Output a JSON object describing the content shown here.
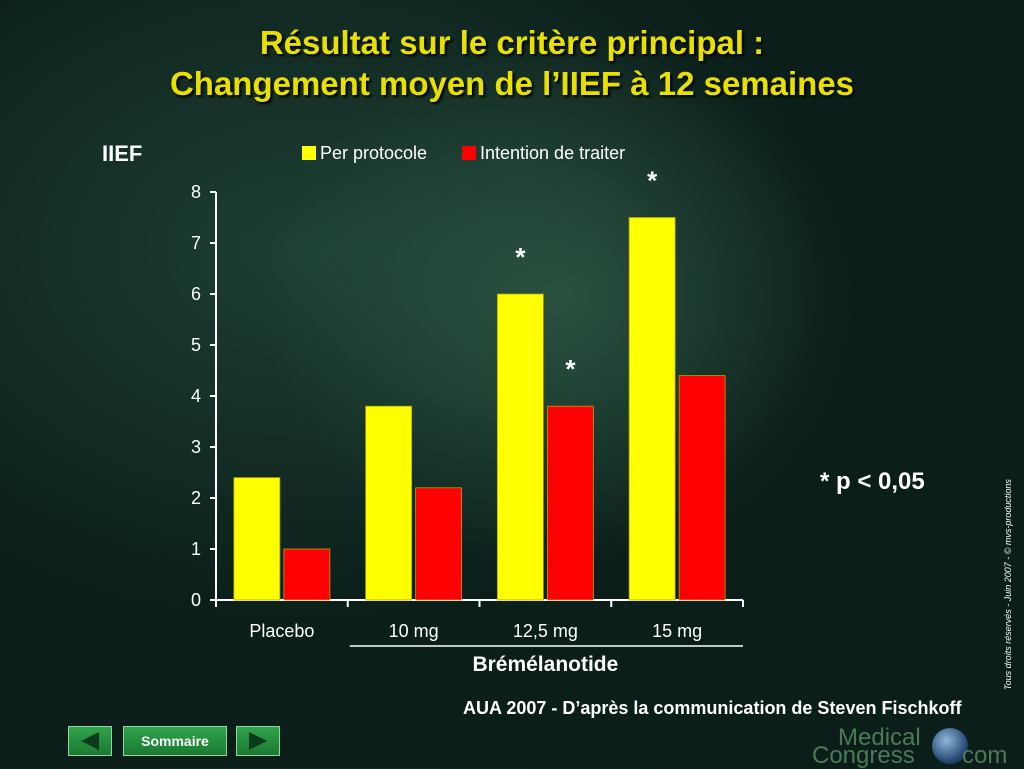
{
  "slide": {
    "title_line1": "Résultat sur le critère principal :",
    "title_line2": "Changement moyen de l’IIEF à 12 semaines",
    "p_note": "p < 0,05",
    "asterisk": "*",
    "source": "AUA 2007 - D’après la communication de Steven Fischkoff",
    "copyright": "Tous droits réservés - Juin 2007 - © mvs-productions"
  },
  "nav": {
    "summary_label": "Sommaire",
    "prev_icon": "triangle-left-icon",
    "next_icon": "triangle-right-icon"
  },
  "brand": {
    "line1": "Medical",
    "line2": "Congress",
    "line3": "com",
    "icon": "globe-icon"
  },
  "colors": {
    "title": "#e8e000",
    "series_per_protocol": "#ffff00",
    "series_itt": "#ff0000",
    "axis": "#ffffff"
  },
  "chart_data": {
    "type": "bar",
    "ylabel": "IIEF",
    "ylim": [
      0,
      8
    ],
    "yticks": [
      0,
      1,
      2,
      3,
      4,
      5,
      6,
      7,
      8
    ],
    "categories": [
      "Placebo",
      "10 mg",
      "12,5 mg",
      "15 mg"
    ],
    "group_label": "Brémélanotide",
    "group_categories": [
      "10 mg",
      "12,5 mg",
      "15 mg"
    ],
    "legend_position": "top",
    "series": [
      {
        "name": "Per protocole",
        "color": "#ffff00",
        "values": [
          2.4,
          3.8,
          6.0,
          7.5
        ],
        "significant": [
          false,
          false,
          true,
          true
        ]
      },
      {
        "name": "Intention de traiter",
        "color": "#ff0000",
        "values": [
          1.0,
          2.2,
          3.8,
          4.4
        ],
        "significant": [
          false,
          false,
          true,
          false
        ]
      }
    ]
  }
}
